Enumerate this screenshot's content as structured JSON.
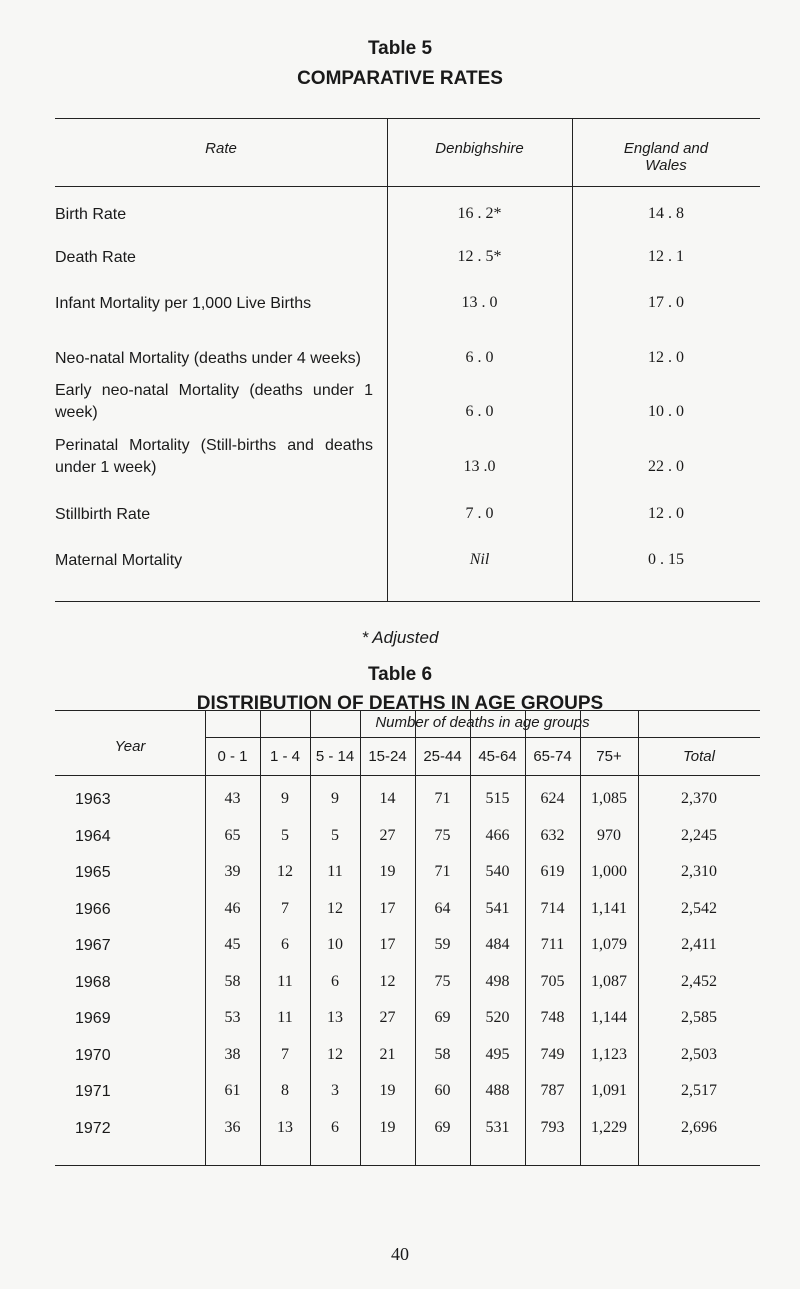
{
  "table5": {
    "title": "Table 5",
    "subtitle": "COMPARATIVE RATES",
    "header": [
      "Rate",
      "Denbighshire",
      "England and Wales"
    ],
    "rows": [
      [
        "Birth Rate",
        "16 . 2*",
        "14 . 8"
      ],
      [
        "Death Rate",
        "12 . 5*",
        "12 . 1"
      ],
      [
        "Infant Mortality per 1,000 Live Births",
        "13 . 0",
        "17 . 0"
      ],
      [
        "Neo-natal Mortality (deaths under 4 weeks)",
        "6 . 0",
        "12 . 0"
      ],
      [
        "Early neo-natal Mortality (deaths under 1 week)",
        "6 . 0",
        "10 . 0"
      ],
      [
        "Perinatal Mortality (Still-births and deaths under 1 week)",
        "13 .0",
        "22 . 0"
      ],
      [
        "Stillbirth Rate",
        "7 . 0",
        "12 . 0"
      ],
      [
        "Maternal Mortality",
        "Nil",
        "0 . 15"
      ]
    ],
    "footnote": "* Adjusted"
  },
  "table6": {
    "title": "Table 6",
    "subtitle": "DISTRIBUTION OF DEATHS IN AGE GROUPS",
    "year_header": "Year",
    "group_header": "Number of deaths in age groups",
    "columns": [
      "0 - 1",
      "1 - 4",
      "5 - 14",
      "15-24",
      "25-44",
      "45-64",
      "65-74",
      "75+",
      "Total"
    ],
    "rows": [
      [
        "1963",
        "43",
        "9",
        "9",
        "14",
        "71",
        "515",
        "624",
        "1,085",
        "2,370"
      ],
      [
        "1964",
        "65",
        "5",
        "5",
        "27",
        "75",
        "466",
        "632",
        "970",
        "2,245"
      ],
      [
        "1965",
        "39",
        "12",
        "11",
        "19",
        "71",
        "540",
        "619",
        "1,000",
        "2,310"
      ],
      [
        "1966",
        "46",
        "7",
        "12",
        "17",
        "64",
        "541",
        "714",
        "1,141",
        "2,542"
      ],
      [
        "1967",
        "45",
        "6",
        "10",
        "17",
        "59",
        "484",
        "711",
        "1,079",
        "2,411"
      ],
      [
        "1968",
        "58",
        "11",
        "6",
        "12",
        "75",
        "498",
        "705",
        "1,087",
        "2,452"
      ],
      [
        "1969",
        "53",
        "11",
        "13",
        "27",
        "69",
        "520",
        "748",
        "1,144",
        "2,585"
      ],
      [
        "1970",
        "38",
        "7",
        "12",
        "21",
        "58",
        "495",
        "749",
        "1,123",
        "2,503"
      ],
      [
        "1971",
        "61",
        "8",
        "3",
        "19",
        "60",
        "488",
        "787",
        "1,091",
        "2,517"
      ],
      [
        "1972",
        "36",
        "13",
        "6",
        "19",
        "69",
        "531",
        "793",
        "1,229",
        "2,696"
      ]
    ]
  },
  "page_number": "40"
}
